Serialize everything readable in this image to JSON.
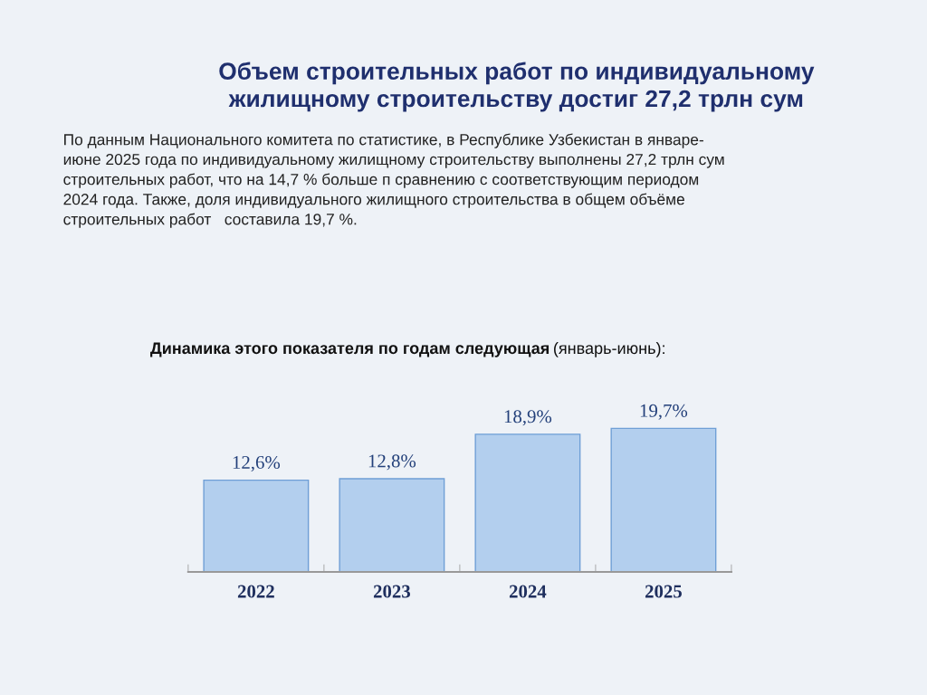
{
  "chart_data": {
    "type": "bar",
    "title": "Объем строительных работ по индивидуальному\nжилищному строительству достиг 27,2 трлн сум",
    "subtitle": "По данным Национального комитета по статистике, в Республике Узбекистан в январе-\nиюне 2025 года по индивидуальному жилищному строительству выполнены 27,2 трлн сум\nстроительных работ, что на 14,7 % больше п сравнению с соответствующим периодом\n2024 года. Также, доля индивидуального жилищного строительства в общем объёме\nстроительных работ   составила 19,7 %.",
    "annotations": [
      "Динамика этого показателя по годам следующая",
      "(январь-июнь):"
    ],
    "categories": [
      "2022",
      "2023",
      "2024",
      "2025"
    ],
    "values": [
      12.6,
      12.8,
      18.9,
      19.7
    ],
    "value_labels": [
      "12,6%",
      "12,8%",
      "18,9%",
      "19,7%"
    ],
    "color": "#b3cfee",
    "grid": false,
    "legend": false
  }
}
